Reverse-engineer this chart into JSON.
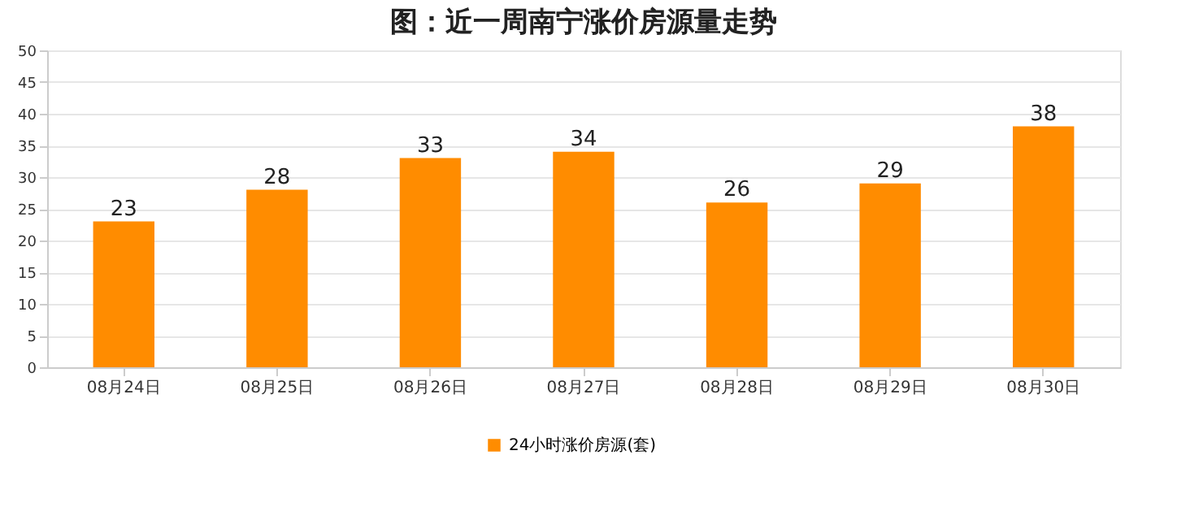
{
  "chart_data": {
    "type": "bar",
    "title": "图：近一周南宁涨价房源量走势",
    "categories": [
      "08月24日",
      "08月25日",
      "08月26日",
      "08月27日",
      "08月28日",
      "08月29日",
      "08月30日"
    ],
    "series": [
      {
        "name": "24小时涨价房源(套)",
        "color": "#ff8c00",
        "values": [
          23,
          28,
          33,
          34,
          26,
          29,
          38
        ]
      }
    ],
    "ylim": [
      0,
      50
    ],
    "yticks": [
      0,
      5,
      10,
      15,
      20,
      25,
      30,
      35,
      40,
      45,
      50
    ],
    "grid": "y",
    "legend": "bottom",
    "data_labels": true
  }
}
